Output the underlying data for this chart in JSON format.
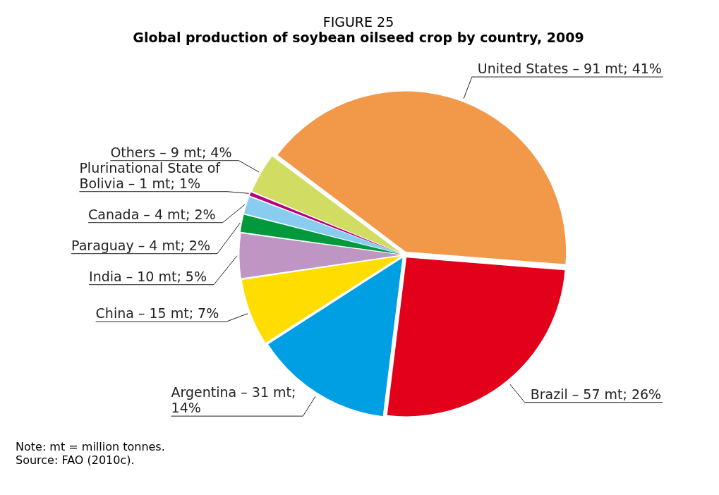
{
  "chart_data": {
    "type": "pie",
    "title": "FIGURE 25",
    "subtitle": "Global production of soybean oilseed crop by country, 2009",
    "categories": [
      "United States –",
      "Brazil –",
      "Argentina –",
      "China –",
      "India –",
      "Paraguay –",
      "Canada –",
      "Plurinational State of Bolivia –",
      "Others –"
    ],
    "values": [
      91,
      57,
      31,
      15,
      10,
      4,
      4,
      1,
      9
    ],
    "value_labels": [
      "91 mt; 41%",
      "57 mt; 26%",
      "31 mt; 14%",
      "15 mt; 7%",
      "10 mt; 5%",
      "4 mt; 2%",
      "4 mt; 2%",
      "1 mt; 1%",
      "9 mt; 4%"
    ],
    "colors": [
      "#f29849",
      "#e2001a",
      "#009fe3",
      "#ffdd00",
      "#bf95c4",
      "#009a3d",
      "#88cdf0",
      "#b5007f",
      "#d0dc62"
    ],
    "legend": false,
    "annotations": [
      "Note: mt = million tonnes.",
      "Source: FAO (2010c)."
    ]
  }
}
